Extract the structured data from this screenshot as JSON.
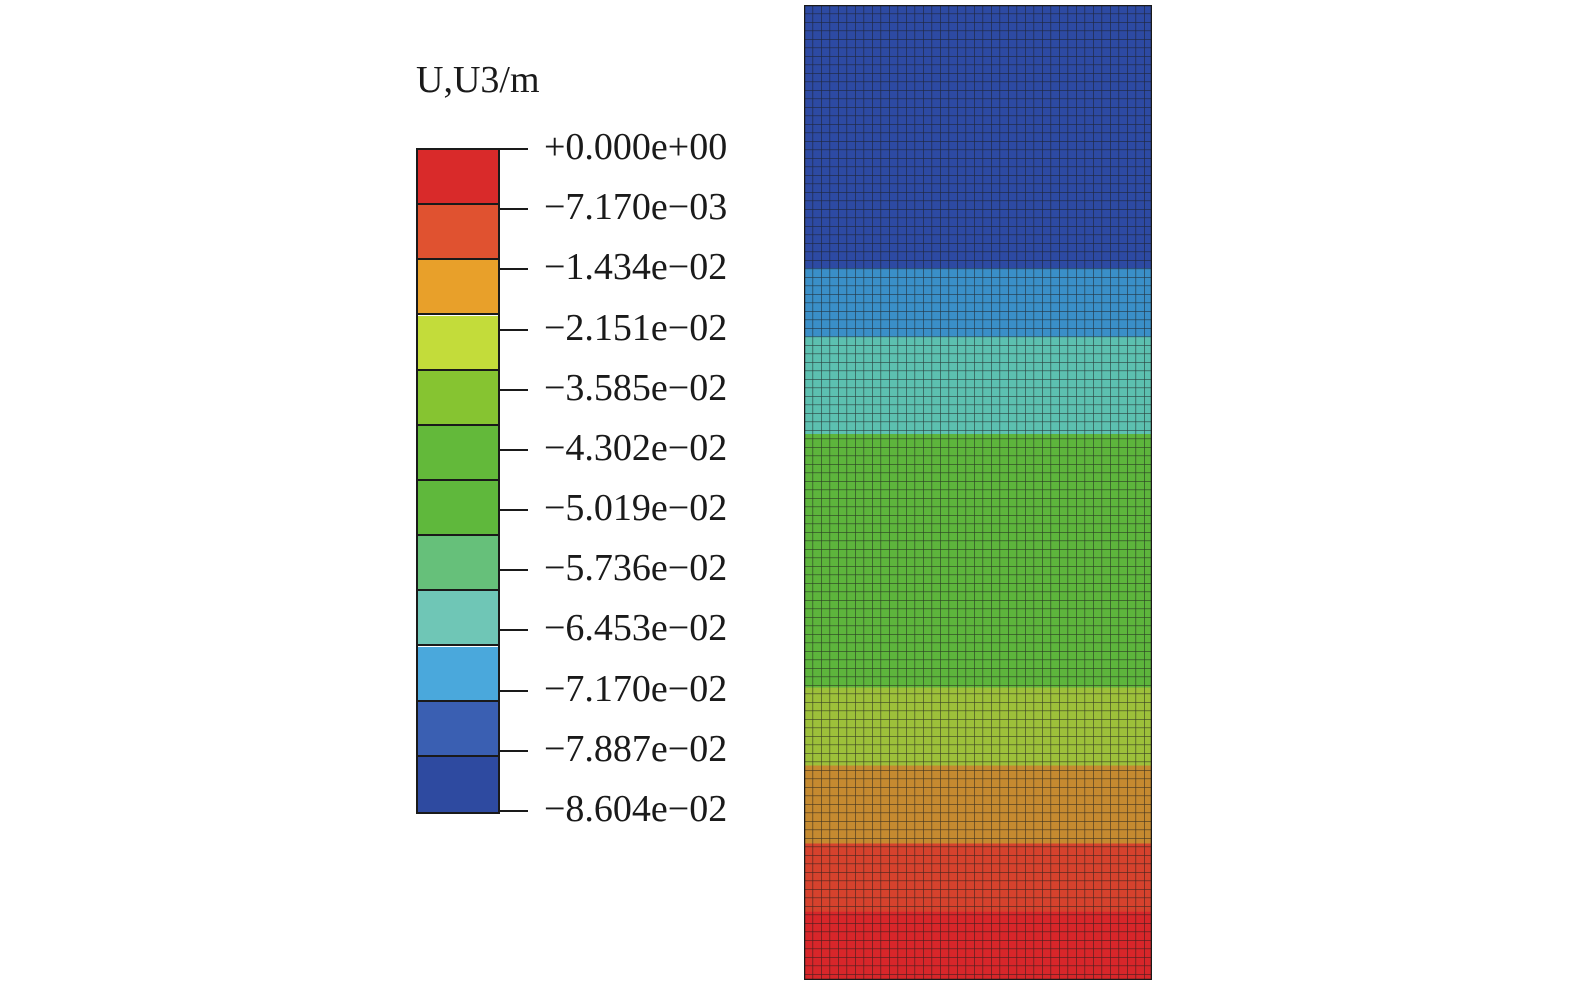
{
  "legend": {
    "title": "U,U3/m",
    "tick_labels": [
      "+0.000e+00",
      "−7.170e−03",
      "−1.434e−02",
      "−2.151e−02",
      "−3.585e−02",
      "−4.302e−02",
      "−5.019e−02",
      "−5.736e−02",
      "−6.453e−02",
      "−7.170e−02",
      "−7.887e−02",
      "−8.604e−02"
    ],
    "band_colors": [
      "#d92a2a",
      "#e05230",
      "#e8a02a",
      "#c3dc3a",
      "#86c431",
      "#63b93a",
      "#5fb83c",
      "#66c07a",
      "#6fc6b6",
      "#4aa8dc",
      "#3a5fb2",
      "#2e4aa0"
    ]
  },
  "model": {
    "mesh_color": "#1a1a1a",
    "bands": [
      {
        "color": "#2d4aa3",
        "fraction": 0.27
      },
      {
        "color": "#3a8fc8",
        "fraction": 0.07
      },
      {
        "color": "#5cc0b0",
        "fraction": 0.1
      },
      {
        "color": "#5db53c",
        "fraction": 0.26
      },
      {
        "color": "#9dc03a",
        "fraction": 0.08
      },
      {
        "color": "#c58a30",
        "fraction": 0.08
      },
      {
        "color": "#d6422d",
        "fraction": 0.07
      },
      {
        "color": "#d8262a",
        "fraction": 0.07
      }
    ]
  }
}
